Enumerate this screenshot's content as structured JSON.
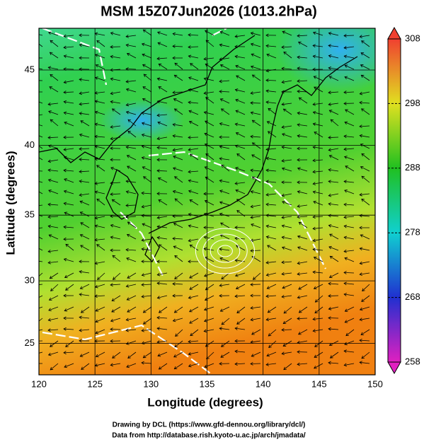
{
  "chart_data": {
    "type": "map",
    "title": "MSM 15Z07Jun2026 (1013.2hPa)",
    "xlabel": "Longitude (degrees)",
    "ylabel": "Latitude  (degrees)",
    "xlim": [
      120,
      150
    ],
    "xticks": [
      120,
      125,
      130,
      135,
      140,
      145,
      150
    ],
    "ylim": [
      22.4,
      47.6
    ],
    "yticks": [
      25,
      30,
      35,
      40,
      45
    ],
    "projection": "mercator",
    "grid": true,
    "colorbar": {
      "lim": [
        258,
        308
      ],
      "ticks": [
        258,
        268,
        278,
        288,
        298,
        308
      ],
      "colors": [
        "#e020c0",
        "#2030d0",
        "#10d0d0",
        "#20c020",
        "#e0e020",
        "#f04030"
      ]
    }
  },
  "footer": {
    "line1": "Drawing by DCL (https://www.gfd-dennou.org/library/dcl/)",
    "line2": "Data from http://database.rish.kyoto-u.ac.jp/arch/jmadata/"
  }
}
